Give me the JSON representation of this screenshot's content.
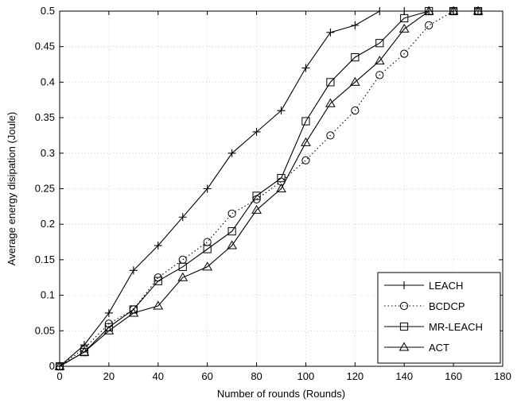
{
  "chart_data": {
    "type": "line",
    "title": "",
    "xlabel": "Number of rounds (Rounds)",
    "ylabel": "Average energy disipation (Joule)",
    "xlim": [
      0,
      180
    ],
    "ylim": [
      0,
      0.5
    ],
    "xticks": [
      0,
      20,
      40,
      60,
      80,
      100,
      120,
      140,
      160,
      180
    ],
    "yticks": [
      0,
      0.05,
      0.1,
      0.15,
      0.2,
      0.25,
      0.3,
      0.35,
      0.4,
      0.45,
      0.5
    ],
    "xtick_labels": [
      "0",
      "20",
      "40",
      "60",
      "80",
      "100",
      "120",
      "140",
      "160",
      "180"
    ],
    "ytick_labels": [
      "0",
      "0.05",
      "0.1",
      "0.15",
      "0.2",
      "0.25",
      "0.3",
      "0.35",
      "0.4",
      "0.45",
      "0.5"
    ],
    "grid": true,
    "legend_position": "bottom-right",
    "x": [
      0,
      10,
      20,
      30,
      40,
      50,
      60,
      70,
      80,
      90,
      100,
      110,
      120,
      130,
      140,
      150,
      160,
      170
    ],
    "series": [
      {
        "name": "LEACH",
        "marker": "plus",
        "line": "solid",
        "values": [
          0,
          0.03,
          0.075,
          0.135,
          0.17,
          0.21,
          0.25,
          0.3,
          0.33,
          0.36,
          0.42,
          0.47,
          0.48,
          0.5,
          0.5,
          0.5,
          0.5,
          0.5
        ]
      },
      {
        "name": "BCDCP",
        "marker": "circle",
        "line": "dotted",
        "values": [
          0,
          0.025,
          0.06,
          0.08,
          0.125,
          0.15,
          0.175,
          0.215,
          0.235,
          0.26,
          0.29,
          0.325,
          0.36,
          0.41,
          0.44,
          0.48,
          0.5,
          0.5
        ]
      },
      {
        "name": "MR-LEACH",
        "marker": "square",
        "line": "solid",
        "values": [
          0,
          0.02,
          0.055,
          0.08,
          0.12,
          0.14,
          0.165,
          0.19,
          0.24,
          0.265,
          0.345,
          0.4,
          0.435,
          0.455,
          0.49,
          0.5,
          0.5,
          0.5
        ]
      },
      {
        "name": "ACT",
        "marker": "triangle",
        "line": "solid",
        "values": [
          0,
          0.02,
          0.05,
          0.075,
          0.085,
          0.125,
          0.14,
          0.17,
          0.22,
          0.25,
          0.315,
          0.37,
          0.4,
          0.43,
          0.475,
          0.5,
          0.5,
          0.5
        ]
      }
    ]
  }
}
